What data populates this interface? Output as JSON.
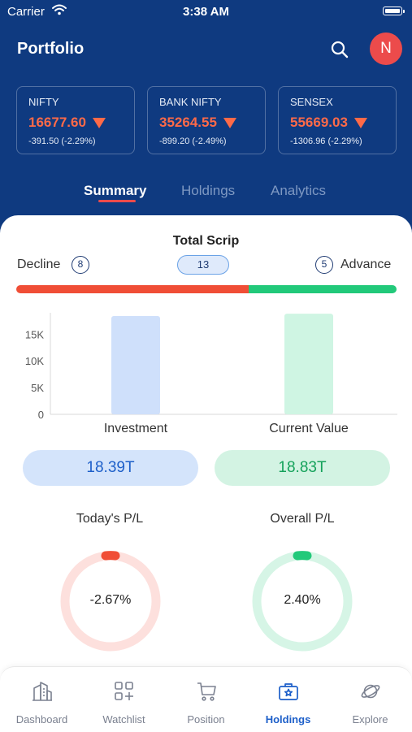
{
  "status_bar": {
    "carrier": "Carrier",
    "time": "3:38 AM"
  },
  "header": {
    "title": "Portfolio",
    "avatar_initial": "N"
  },
  "indices": [
    {
      "name": "NIFTY",
      "value": "16677.60",
      "change": "-391.50 (-2.29%)"
    },
    {
      "name": "BANK NIFTY",
      "value": "35264.55",
      "change": "-899.20 (-2.49%)"
    },
    {
      "name": "SENSEX",
      "value": "55669.03",
      "change": "-1306.96 (-2.29%)"
    }
  ],
  "tabs": [
    {
      "label": "Summary"
    },
    {
      "label": "Holdings"
    },
    {
      "label": "Analytics"
    }
  ],
  "active_tab": "Summary",
  "scrip": {
    "title": "Total Scrip",
    "decline_label": "Decline",
    "decline_count": 8,
    "total_count": 13,
    "advance_label": "Advance",
    "advance_count": 5
  },
  "chart_data": {
    "type": "bar",
    "categories": [
      "Investment",
      "Current Value"
    ],
    "values": [
      18390,
      18830
    ],
    "ylim": [
      0,
      19000
    ],
    "yticks": [
      {
        "label": "0",
        "value": 0
      },
      {
        "label": "5K",
        "value": 5000
      },
      {
        "label": "10K",
        "value": 10000
      },
      {
        "label": "15K",
        "value": 15000
      }
    ],
    "colors": [
      "#cfe0fb",
      "#cff5e3"
    ],
    "grid": false
  },
  "summary": {
    "investment_label": "Investment",
    "investment_value": "18.39T",
    "current_value_label": "Current Value",
    "current_value": "18.83T"
  },
  "pl": {
    "today_label": "Today's P/L",
    "today_value": "-2.67%",
    "today_percent": -2.67,
    "overall_label": "Overall P/L",
    "overall_value": "2.40%",
    "overall_percent": 2.4
  },
  "colors": {
    "header_bg": "#0f3a80",
    "loss": "#f04e36",
    "gain": "#22c97a",
    "accent": "#1d5fc9"
  },
  "nav": [
    {
      "label": "Dashboard",
      "icon": "building-icon"
    },
    {
      "label": "Watchlist",
      "icon": "grid-plus-icon"
    },
    {
      "label": "Position",
      "icon": "cart-icon"
    },
    {
      "label": "Holdings",
      "icon": "briefcase-star-icon"
    },
    {
      "label": "Explore",
      "icon": "planet-icon"
    }
  ],
  "nav_active": "Holdings"
}
